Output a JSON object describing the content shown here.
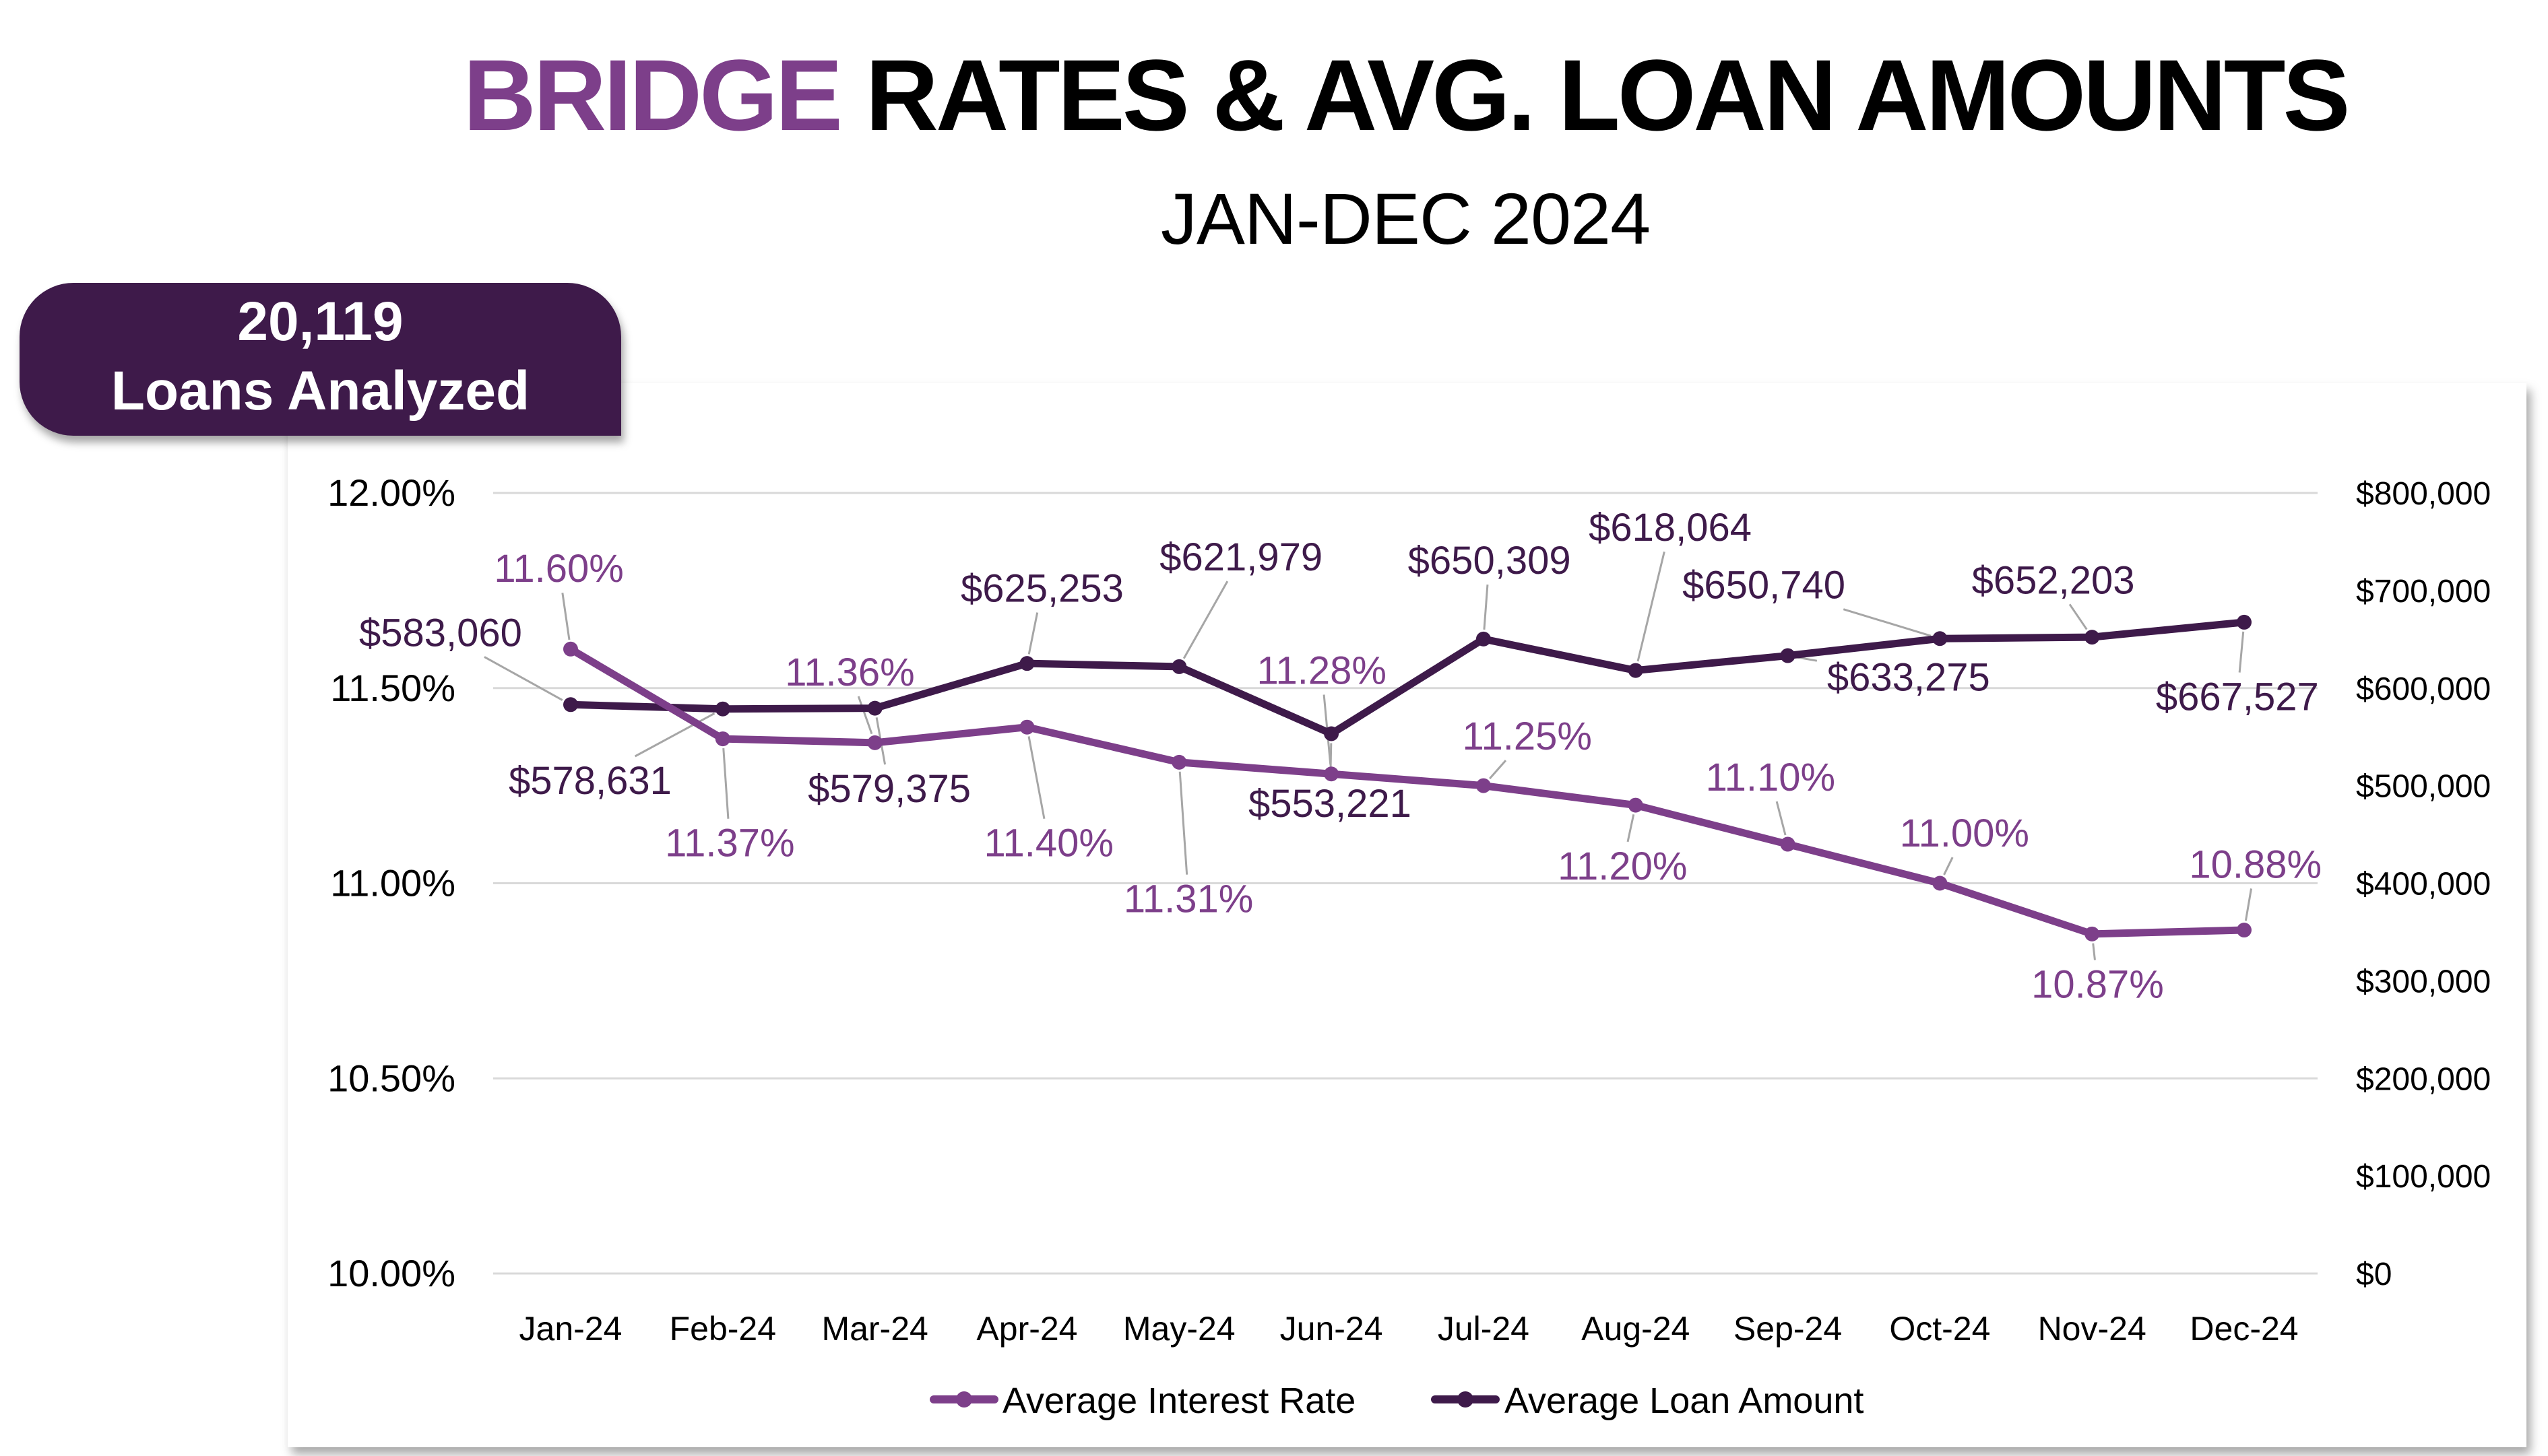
{
  "header": {
    "title_highlight": "BRIDGE",
    "title_rest": "RATES & AVG. LOAN AMOUNTS",
    "subtitle": "JAN-DEC 2024"
  },
  "badge": {
    "count": "20,119",
    "label": "Loans Analyzed"
  },
  "colors": {
    "rate": "#7d3f8a",
    "loan": "#3e1a4a",
    "grid": "#d9d9d9",
    "leader": "#a6a6a6"
  },
  "chart_data": {
    "type": "line",
    "title": "BRIDGE RATES & AVG. LOAN AMOUNTS",
    "subtitle": "JAN-DEC 2024",
    "categories": [
      "Jan-24",
      "Feb-24",
      "Mar-24",
      "Apr-24",
      "May-24",
      "Jun-24",
      "Jul-24",
      "Aug-24",
      "Sep-24",
      "Oct-24",
      "Nov-24",
      "Dec-24"
    ],
    "left_axis": {
      "ylim": [
        10.0,
        12.0
      ],
      "ticks": [
        "10.00%",
        "10.50%",
        "11.00%",
        "11.50%",
        "12.00%"
      ],
      "tick_values": [
        10.0,
        10.5,
        11.0,
        11.5,
        12.0
      ]
    },
    "right_axis": {
      "ylim": [
        0,
        800000
      ],
      "ticks": [
        "$0",
        "$100,000",
        "$200,000",
        "$300,000",
        "$400,000",
        "$500,000",
        "$600,000",
        "$700,000",
        "$800,000"
      ],
      "tick_values": [
        0,
        100000,
        200000,
        300000,
        400000,
        500000,
        600000,
        700000,
        800000
      ]
    },
    "grid": true,
    "legend": "bottom",
    "series": [
      {
        "name": "Average Interest Rate",
        "axis": "left",
        "values": [
          11.6,
          11.37,
          11.36,
          11.4,
          11.31,
          11.28,
          11.25,
          11.2,
          11.1,
          11.0,
          10.87,
          10.88
        ],
        "labels": [
          "11.60%",
          "11.37%",
          "11.36%",
          "11.40%",
          "11.31%",
          "11.28%",
          "11.25%",
          "11.20%",
          "11.10%",
          "11.00%",
          "10.87%",
          "10.88%"
        ]
      },
      {
        "name": "Average Loan Amount",
        "axis": "right",
        "values": [
          583060,
          578631,
          579375,
          625253,
          621979,
          553221,
          650309,
          618064,
          633275,
          650740,
          652203,
          667527
        ],
        "labels": [
          "$583,060",
          "$578,631",
          "$579,375",
          "$625,253",
          "$621,979",
          "$553,221",
          "$650,309",
          "$618,064",
          "$633,275",
          "$650,740",
          "$652,203",
          "$667,527"
        ]
      }
    ]
  }
}
